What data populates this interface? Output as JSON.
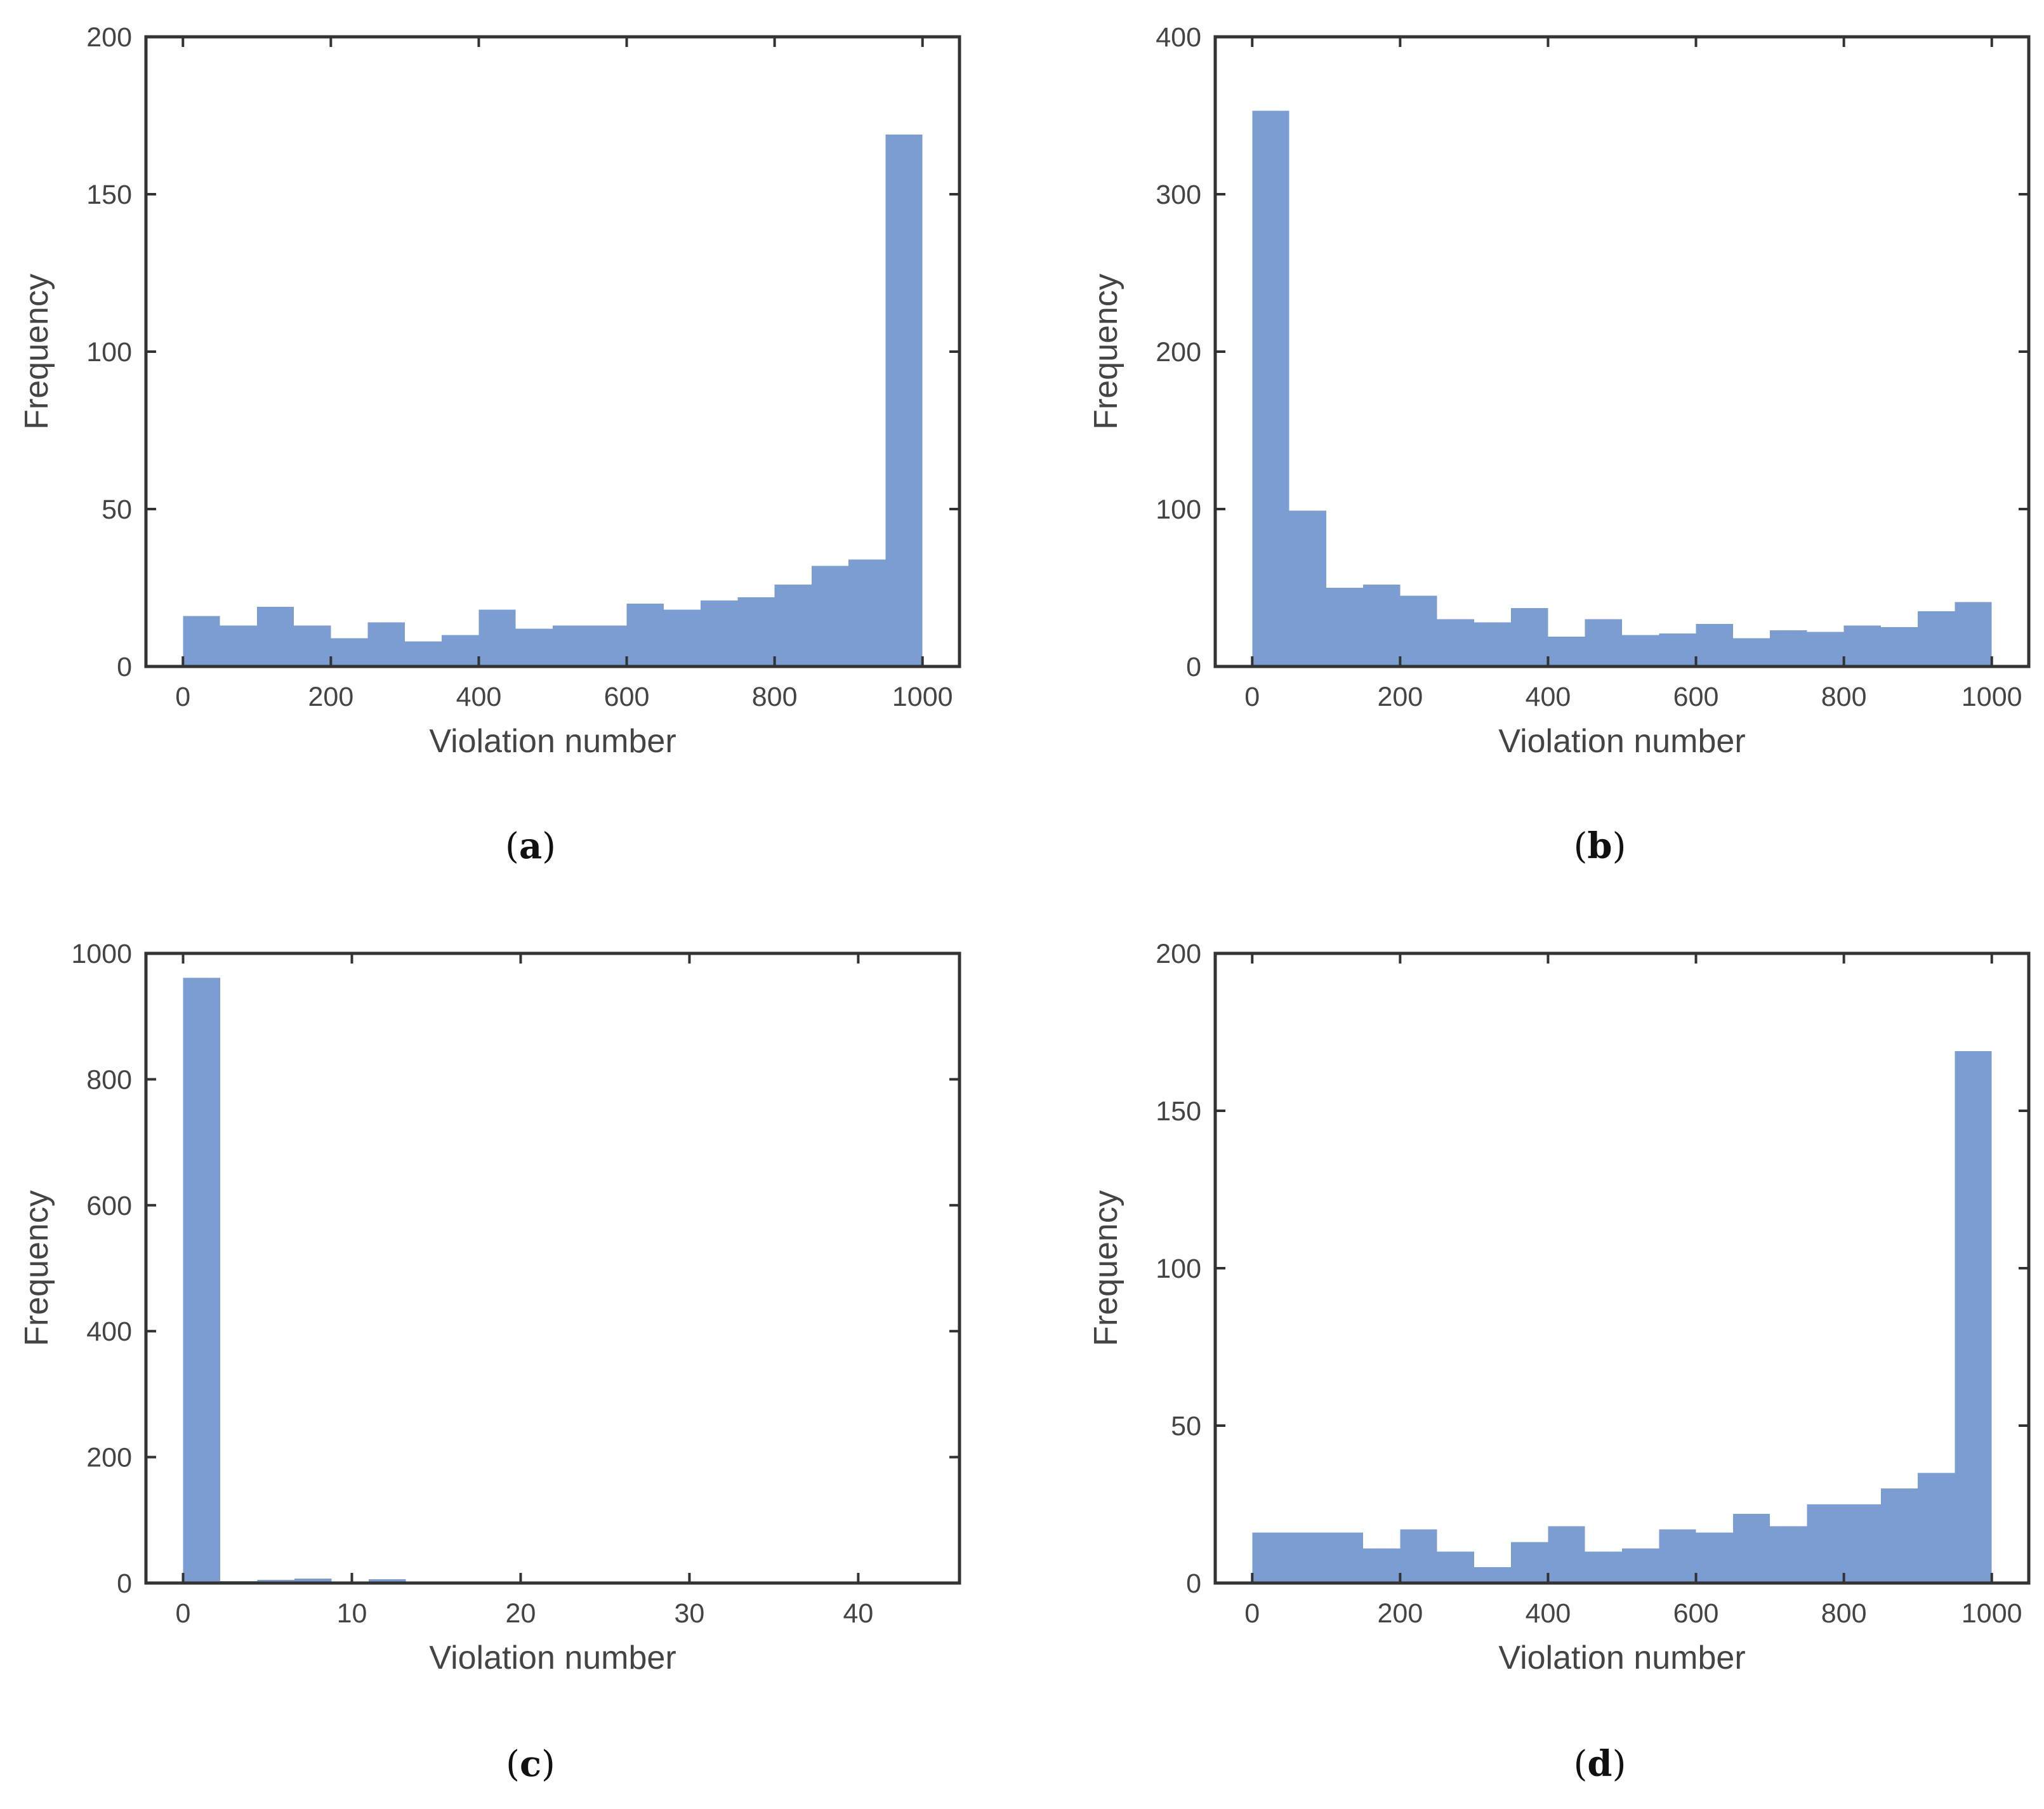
{
  "chart_data": [
    {
      "type": "bar",
      "panel": "a",
      "caption": {
        "open": "(",
        "letter": "a",
        "close": ")"
      },
      "xlabel": "Violation number",
      "ylabel": "Frequency",
      "xlim": [
        -50,
        1050
      ],
      "ylim": [
        0,
        200
      ],
      "xticks": [
        0,
        200,
        400,
        600,
        800,
        1000
      ],
      "yticks": [
        0,
        50,
        100,
        150,
        200
      ],
      "bin_edges": [
        0,
        50,
        100,
        150,
        200,
        250,
        300,
        350,
        400,
        450,
        500,
        550,
        600,
        650,
        700,
        750,
        800,
        850,
        900,
        950,
        1000
      ],
      "values": [
        16,
        13,
        19,
        13,
        9,
        14,
        8,
        10,
        18,
        12,
        13,
        13,
        20,
        18,
        21,
        22,
        26,
        32,
        34,
        169
      ],
      "color": "#7b9dd2"
    },
    {
      "type": "bar",
      "panel": "b",
      "caption": {
        "open": "(",
        "letter": "b",
        "close": ")"
      },
      "xlabel": "Violation number",
      "ylabel": "Frequency",
      "xlim": [
        -50,
        1050
      ],
      "ylim": [
        0,
        400
      ],
      "xticks": [
        0,
        200,
        400,
        600,
        800,
        1000
      ],
      "yticks": [
        0,
        100,
        200,
        300,
        400
      ],
      "bin_edges": [
        0,
        50,
        100,
        150,
        200,
        250,
        300,
        350,
        400,
        450,
        500,
        550,
        600,
        650,
        700,
        750,
        800,
        850,
        900,
        950,
        1000
      ],
      "values": [
        353,
        99,
        50,
        52,
        45,
        30,
        28,
        37,
        19,
        30,
        20,
        21,
        27,
        18,
        23,
        22,
        26,
        25,
        35,
        41
      ],
      "color": "#7b9dd2"
    },
    {
      "type": "bar",
      "panel": "c",
      "caption": {
        "open": "(",
        "letter": "c",
        "close": ")"
      },
      "xlabel": "Violation number",
      "ylabel": "Frequency",
      "xlim": [
        -2.2,
        46
      ],
      "ylim": [
        0,
        1000
      ],
      "xticks": [
        0,
        10,
        20,
        30,
        40
      ],
      "yticks": [
        0,
        200,
        400,
        600,
        800,
        1000
      ],
      "bin_edges": [
        0,
        2.2,
        4.4,
        6.6,
        8.8,
        11,
        13.2,
        15.4,
        17.6,
        19.8,
        22,
        24.2,
        26.4,
        28.6,
        30.8,
        33,
        35.2,
        37.4,
        39.6,
        41.8,
        44
      ],
      "values": [
        961,
        3,
        5,
        7,
        2,
        6,
        1,
        1,
        2,
        1,
        0,
        0,
        0,
        0,
        0,
        0,
        0,
        0,
        0,
        0
      ],
      "color": "#7b9dd2"
    },
    {
      "type": "bar",
      "panel": "d",
      "caption": {
        "open": "(",
        "letter": "d",
        "close": ")"
      },
      "xlabel": "Violation number",
      "ylabel": "Frequency",
      "xlim": [
        -50,
        1050
      ],
      "ylim": [
        0,
        200
      ],
      "xticks": [
        0,
        200,
        400,
        600,
        800,
        1000
      ],
      "yticks": [
        0,
        50,
        100,
        150,
        200
      ],
      "bin_edges": [
        0,
        50,
        100,
        150,
        200,
        250,
        300,
        350,
        400,
        450,
        500,
        550,
        600,
        650,
        700,
        750,
        800,
        850,
        900,
        950,
        1000
      ],
      "values": [
        16,
        16,
        16,
        11,
        17,
        10,
        5,
        13,
        18,
        10,
        11,
        17,
        16,
        22,
        18,
        25,
        25,
        30,
        35,
        169
      ],
      "color": "#7b9dd2"
    }
  ]
}
